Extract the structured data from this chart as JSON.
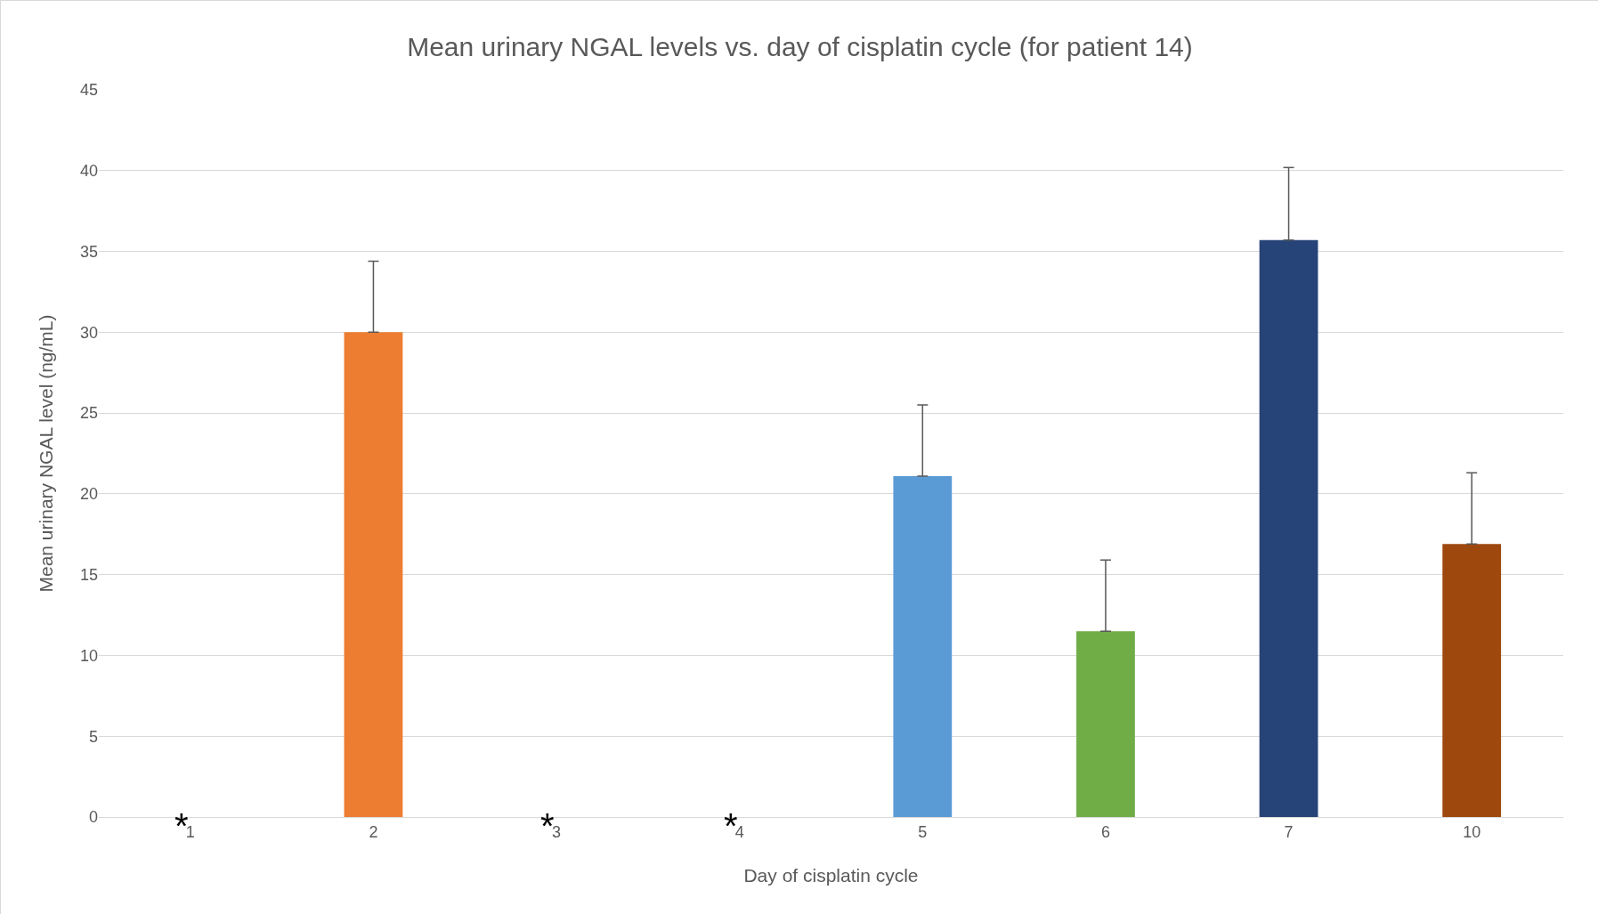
{
  "chart_data": {
    "type": "bar",
    "title": "Mean urinary NGAL levels vs. day of cisplatin cycle (for patient 14)",
    "xlabel": "Day of cisplatin cycle",
    "ylabel": "Mean urinary NGAL level (ng/mL)",
    "categories": [
      "1",
      "2",
      "3",
      "4",
      "5",
      "6",
      "7",
      "10"
    ],
    "values": [
      null,
      30,
      null,
      null,
      21.1,
      11.5,
      35.7,
      16.9
    ],
    "colors": [
      "#ed7d31",
      "#ed7d31",
      "#ed7d31",
      "#ed7d31",
      "#5b9bd5",
      "#70ad47",
      "#264478",
      "#9e480e"
    ],
    "errors": [
      null,
      [
        30,
        34.4
      ],
      null,
      null,
      [
        21.1,
        25.5
      ],
      [
        11.5,
        15.9
      ],
      [
        35.7,
        40.2
      ],
      [
        16.9,
        21.3
      ]
    ],
    "ylim": [
      0,
      45
    ],
    "yticks": [
      0,
      5,
      10,
      15,
      20,
      25,
      30,
      35,
      40,
      45
    ],
    "grid": "y",
    "annotations": [
      "*",
      "*",
      "*"
    ]
  }
}
